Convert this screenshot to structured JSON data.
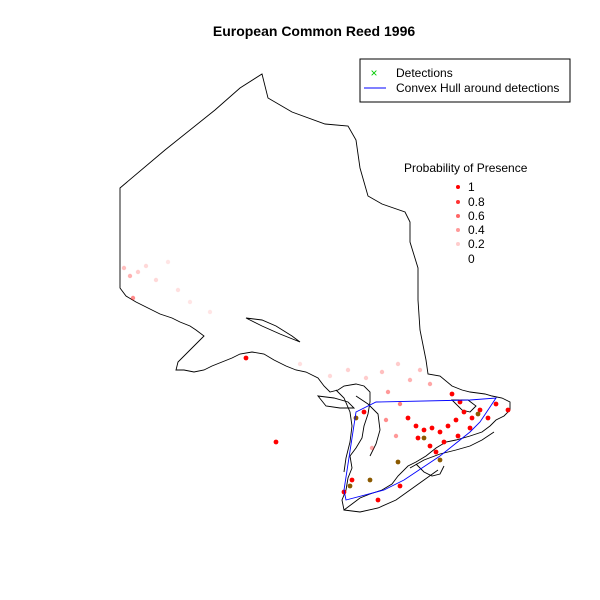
{
  "title": "European Common Reed 1996",
  "legend": {
    "detections_label": "Detections",
    "hull_label": "Convex Hull around detections",
    "detections_color": "#00cc00",
    "hull_color": "#0000ff"
  },
  "probability_legend": {
    "title": "Probability of Presence",
    "levels": [
      "1",
      "0.8",
      "0.6",
      "0.4",
      "0.2",
      "0"
    ],
    "color": "#ff0000"
  },
  "colors": {
    "outline": "#000000",
    "presence": "#ff0000",
    "detection_marker": "#8b5a00"
  }
}
